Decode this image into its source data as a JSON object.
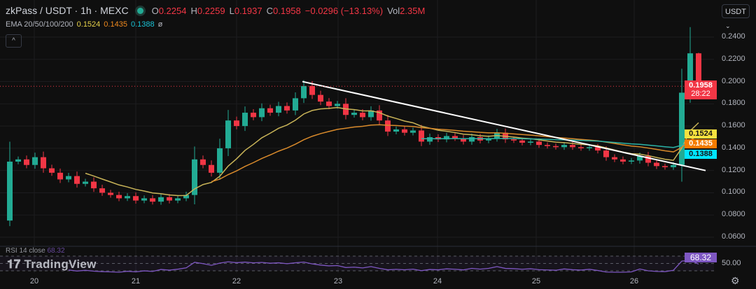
{
  "header": {
    "symbol": "zkPass / USDT · 1h · MEXC",
    "o_label": "O",
    "open": "0.2254",
    "h_label": "H",
    "high": "0.2259",
    "l_label": "L",
    "low": "0.1937",
    "c_label": "C",
    "close": "0.1958",
    "change": "−0.0296 (−13.13%)",
    "vol_label": "Vol",
    "volume": "2.35M"
  },
  "ema": {
    "label": "EMA 20/50/100/200",
    "v20": "0.1524",
    "v50": "0.1435",
    "v100": "0.1388",
    "v200": "ø"
  },
  "currency": {
    "label": "USDT",
    "chevron": "⌄"
  },
  "collapse_icon": "^",
  "price_tag": {
    "value": "0.1958",
    "countdown": "28:22"
  },
  "rsi": {
    "label": "RSI 14 close",
    "value": "68.32",
    "axis": "50.00"
  },
  "watermark": "TradingView",
  "colors": {
    "up": "#22ab94",
    "down": "#f23645",
    "ema20": "#c9b458",
    "ema50": "#d98a2b",
    "ema100": "#2bb3a6",
    "rsi": "#7e57c2",
    "trendline": "#ffffff",
    "background": "#0f0f0f"
  },
  "chart_data": {
    "type": "candlestick",
    "price_axis": [
      "0.2400",
      "0.2200",
      "0.2000",
      "0.1800",
      "0.1600",
      "0.1400",
      "0.1200",
      "0.1000",
      "0.0800",
      "0.0600"
    ],
    "ylim": [
      0.06,
      0.24
    ],
    "x_ticks": [
      "20",
      "21",
      "22",
      "23",
      "24",
      "25",
      "26"
    ],
    "first_open": 0.075,
    "closes": [
      0.128,
      0.13,
      0.125,
      0.132,
      0.122,
      0.118,
      0.112,
      0.115,
      0.108,
      0.11,
      0.104,
      0.1,
      0.098,
      0.095,
      0.097,
      0.093,
      0.095,
      0.092,
      0.096,
      0.093,
      0.095,
      0.098,
      0.13,
      0.125,
      0.118,
      0.14,
      0.165,
      0.16,
      0.172,
      0.168,
      0.176,
      0.172,
      0.178,
      0.174,
      0.185,
      0.196,
      0.188,
      0.182,
      0.178,
      0.18,
      0.17,
      0.172,
      0.168,
      0.174,
      0.165,
      0.155,
      0.157,
      0.154,
      0.156,
      0.146,
      0.15,
      0.148,
      0.151,
      0.149,
      0.146,
      0.15,
      0.147,
      0.149,
      0.154,
      0.148,
      0.147,
      0.145,
      0.146,
      0.143,
      0.142,
      0.141,
      0.143,
      0.141,
      0.14,
      0.141,
      0.138,
      0.132,
      0.13,
      0.128,
      0.129,
      0.133,
      0.127,
      0.124,
      0.123,
      0.125,
      0.19,
      0.2254,
      0.1958
    ],
    "last_candle": {
      "open": 0.2254,
      "high": 0.2259,
      "low": 0.1937,
      "close": 0.1958
    },
    "trendline": {
      "start_price": 0.2,
      "end_price": 0.12
    },
    "ema_periods": [
      20,
      50,
      100
    ],
    "rsi_levels": [
      70,
      50,
      30
    ]
  }
}
